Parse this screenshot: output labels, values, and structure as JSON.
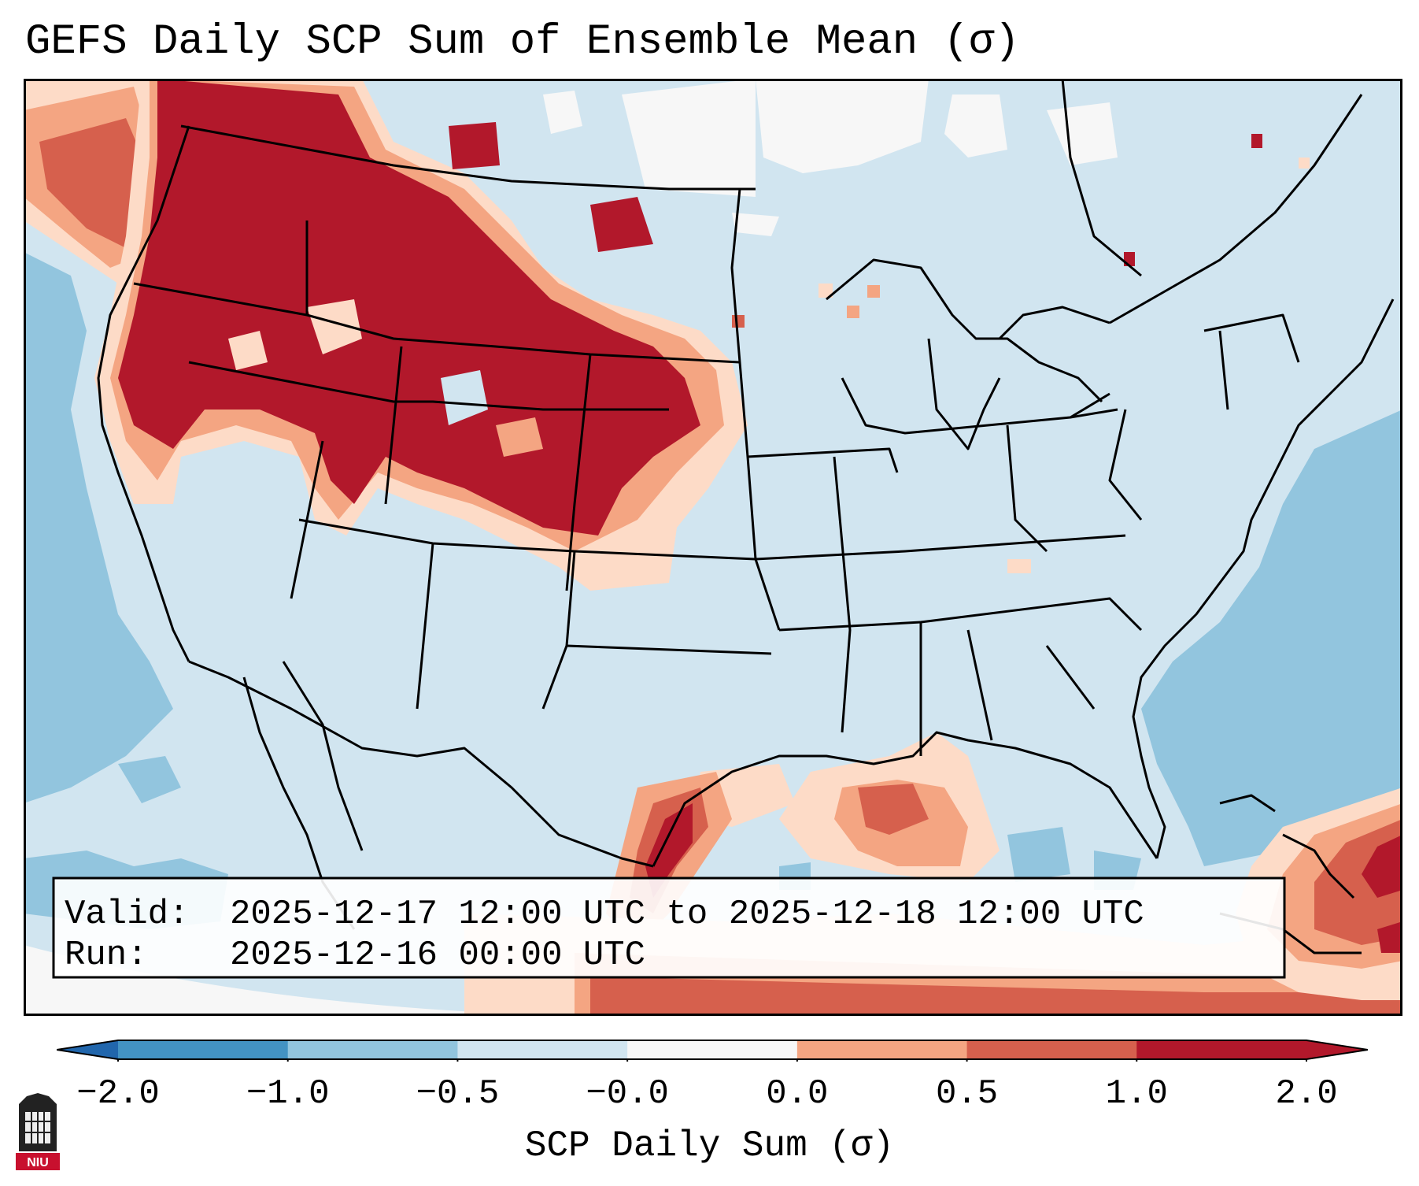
{
  "title": "GEFS Daily SCP Sum of Ensemble Mean (σ)",
  "infobox": {
    "valid_label": "Valid:",
    "valid_value": "2025-12-17 12:00 UTC to 2025-12-18 12:00 UTC",
    "run_label": "Run:",
    "run_value": "2025-12-16 00:00 UTC"
  },
  "colorbar": {
    "label": "SCP Daily Sum (σ)",
    "ticks": [
      "−2.0",
      "−1.0",
      "−0.5",
      "−0.0",
      "0.0",
      "0.5",
      "1.0",
      "2.0"
    ],
    "colors": [
      "#4393c3",
      "#92c5de",
      "#d1e5f0",
      "#f7f7f7",
      "#fddbc7",
      "#f4a582",
      "#d6604d",
      "#b2182b"
    ],
    "extend_low_color": "#2166ac",
    "extend_high_color": "#b2182b"
  },
  "map": {
    "background": "#d1e5f0",
    "ocean_low": "#92c5de",
    "neutral": "#f7f7f7",
    "weak_pos": "#fddbc7",
    "mod_pos": "#f4a582",
    "strong_pos": "#d6604d",
    "very_strong_pos": "#b2182b"
  },
  "logo": {
    "text": "NIU",
    "icon": "niu-seal-icon"
  }
}
